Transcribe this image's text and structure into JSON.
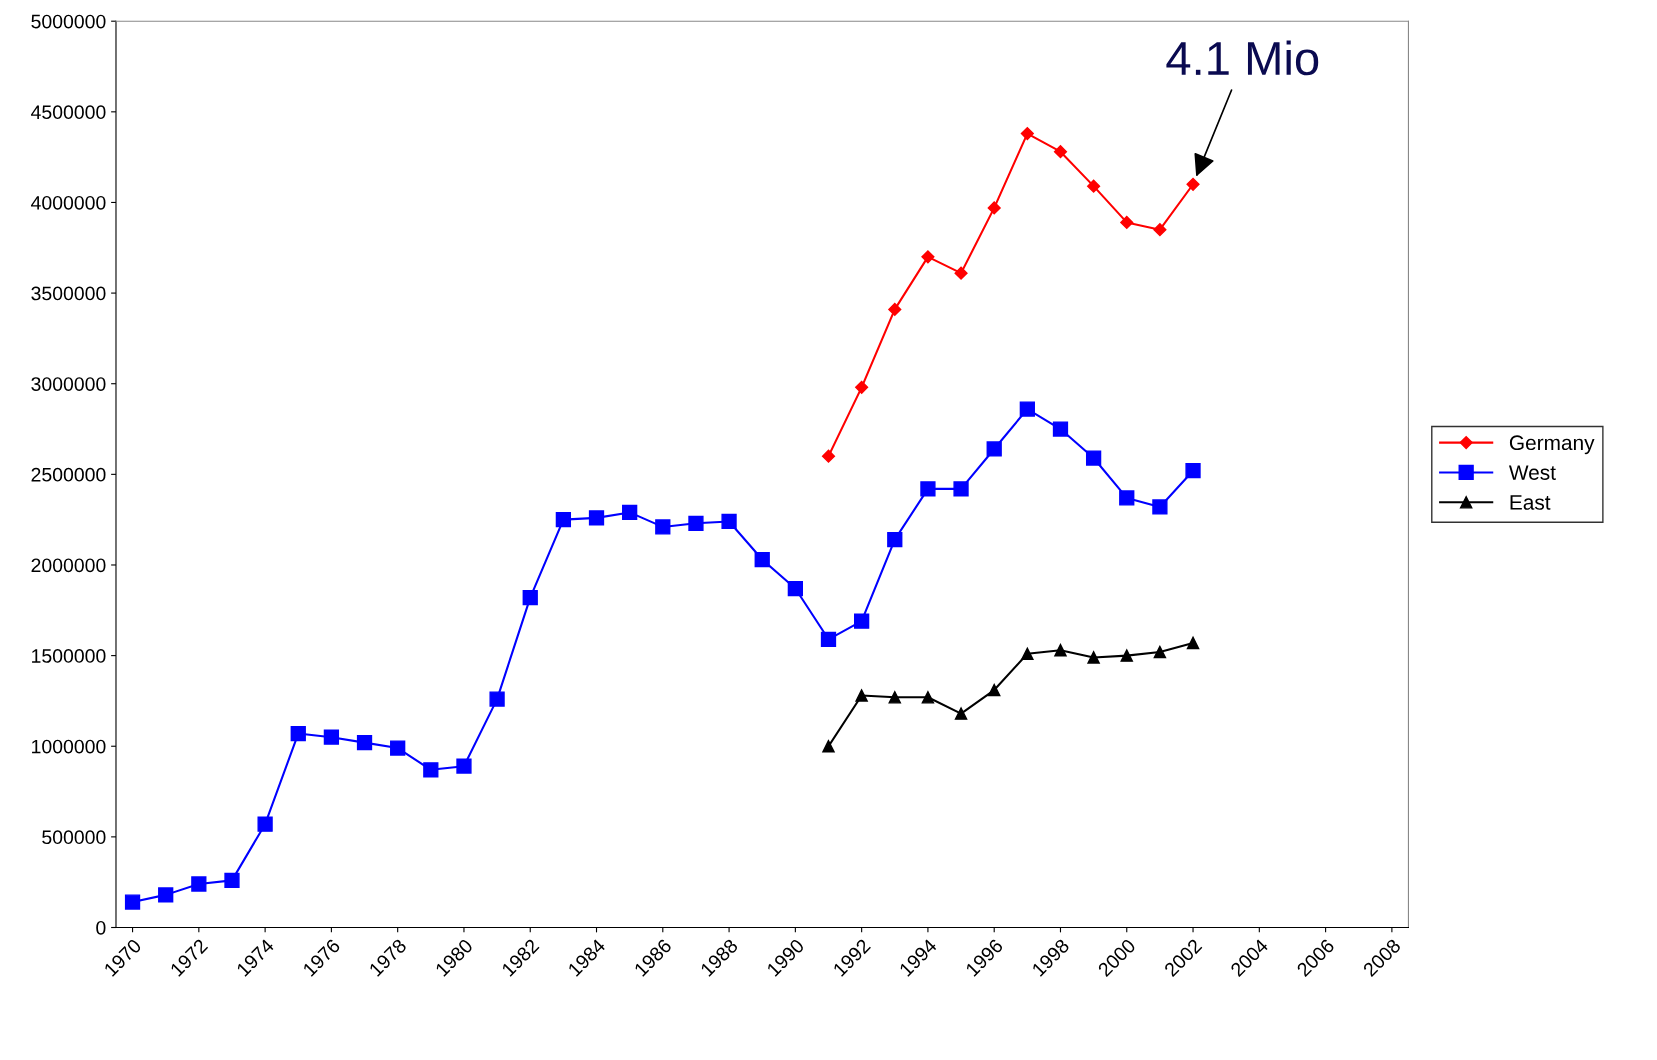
{
  "chart_data": {
    "type": "line",
    "categories": [
      "1970",
      null,
      "1972",
      null,
      "1974",
      null,
      "1976",
      null,
      "1978",
      null,
      "1980",
      null,
      "1982",
      null,
      "1984",
      null,
      "1986",
      null,
      "1988",
      null,
      "1990",
      null,
      "1992",
      null,
      "1994",
      null,
      "1996",
      null,
      "1998",
      null,
      "2000",
      null,
      "2002",
      null,
      "2004",
      null,
      "2006",
      null,
      "2008"
    ],
    "series": [
      {
        "name": "Germany",
        "color": "#ff0000",
        "marker": "diamond",
        "values": [
          null,
          null,
          null,
          null,
          null,
          null,
          null,
          null,
          null,
          null,
          null,
          null,
          null,
          null,
          null,
          null,
          null,
          null,
          null,
          null,
          null,
          2600000,
          2980000,
          3410000,
          3700000,
          3610000,
          3970000,
          4380000,
          4280000,
          4090000,
          3890000,
          3850000,
          4100000,
          null,
          null,
          null,
          null,
          null,
          null
        ]
      },
      {
        "name": "West",
        "color": "#0000ff",
        "marker": "square",
        "values": [
          140000,
          180000,
          240000,
          260000,
          570000,
          1070000,
          1050000,
          1020000,
          990000,
          870000,
          890000,
          1260000,
          1820000,
          2250000,
          2260000,
          2290000,
          2210000,
          2230000,
          2240000,
          2030000,
          1870000,
          1590000,
          1690000,
          2140000,
          2420000,
          2420000,
          2640000,
          2860000,
          2750000,
          2590000,
          2370000,
          2320000,
          2520000,
          null,
          null,
          null,
          null,
          null,
          null
        ]
      },
      {
        "name": "East",
        "color": "#000000",
        "marker": "triangle",
        "values": [
          null,
          null,
          null,
          null,
          null,
          null,
          null,
          null,
          null,
          null,
          null,
          null,
          null,
          null,
          null,
          null,
          null,
          null,
          null,
          null,
          null,
          1000000,
          1280000,
          1270000,
          1270000,
          1180000,
          1310000,
          1510000,
          1530000,
          1490000,
          1500000,
          1520000,
          1570000,
          null,
          null,
          null,
          null,
          null,
          null
        ]
      }
    ],
    "ylim": [
      0,
      5000000
    ],
    "yticks": [
      0,
      500000,
      1000000,
      1500000,
      2000000,
      2500000,
      3000000,
      3500000,
      4000000,
      4500000,
      5000000
    ],
    "grid": false,
    "legend": "right",
    "annotations": [
      {
        "text": "4.1 Mio",
        "x": "2002",
        "y": 4100000
      }
    ]
  }
}
